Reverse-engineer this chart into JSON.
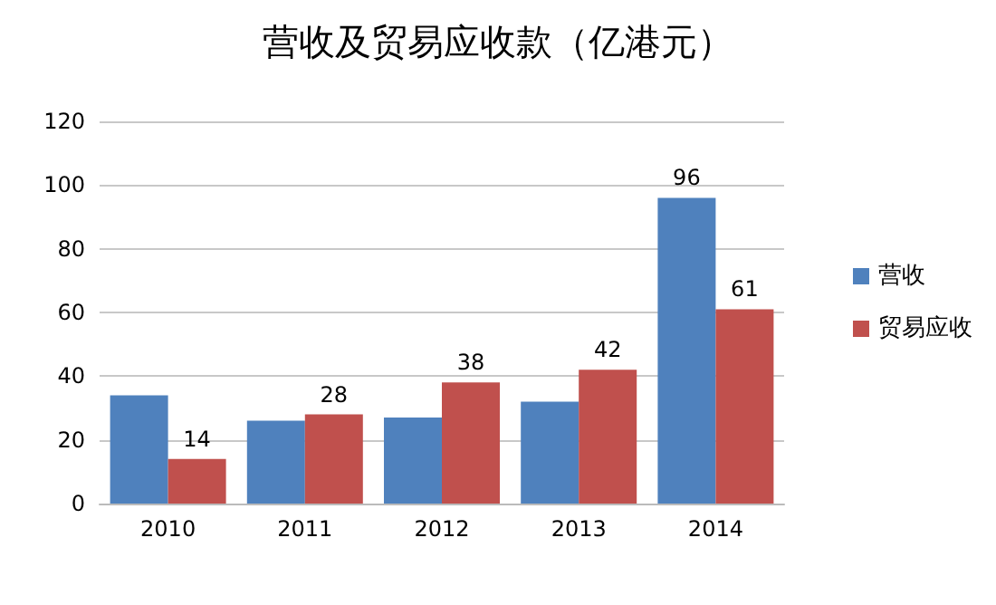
{
  "chart_data": {
    "type": "bar",
    "title": "营收及贸易应收款（亿港元）",
    "categories": [
      "2010",
      "2011",
      "2012",
      "2013",
      "2014"
    ],
    "series": [
      {
        "name": "营收",
        "color": "#4f81bd",
        "values": [
          34,
          26,
          27,
          32,
          96
        ],
        "value_labels": [
          null,
          null,
          null,
          null,
          "96"
        ]
      },
      {
        "name": "贸易应收",
        "color": "#c0504d",
        "values": [
          14,
          28,
          38,
          42,
          61
        ],
        "value_labels": [
          "14",
          "28",
          "38",
          "42",
          "61"
        ]
      }
    ],
    "ylim": [
      0,
      120
    ],
    "yticks": [
      0,
      20,
      40,
      60,
      80,
      100,
      120
    ],
    "grid": "y",
    "legend": "right"
  }
}
